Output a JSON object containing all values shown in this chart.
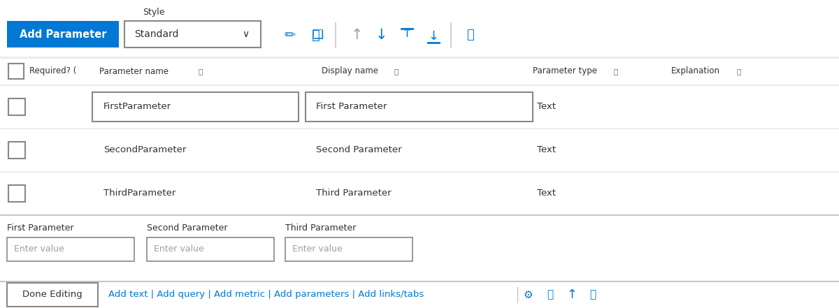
{
  "bg_color": "#f3f2f1",
  "white": "#ffffff",
  "blue": "#0078d4",
  "dark_gray": "#323130",
  "mid_gray": "#605e5c",
  "light_gray_row": "#f3f2f1",
  "border_gray": "#8a8886",
  "divider_color": "#c8c6c4",
  "placeholder_color": "#a19f9d",
  "add_param_label": "Add Parameter",
  "style_label": "Style",
  "style_value": "Standard",
  "col_required": "Required? (",
  "col_param_name": "Parameter name",
  "col_display_name": "Display name",
  "col_param_type": "Parameter type",
  "col_explanation": "Explanation",
  "rows": [
    {
      "param_name": "FirstParameter",
      "display_name": "First Parameter",
      "type": "Text",
      "selected": true
    },
    {
      "param_name": "SecondParameter",
      "display_name": "Second Parameter",
      "type": "Text",
      "selected": false
    },
    {
      "param_name": "ThirdParameter",
      "display_name": "Third Parameter",
      "type": "Text",
      "selected": false
    }
  ],
  "input_labels": [
    "First Parameter",
    "Second Parameter",
    "Third Parameter"
  ],
  "input_placeholder": "Enter value",
  "done_btn_label": "Done Editing",
  "bottom_links": "Add text | Add query | Add metric | Add parameters | Add links/tabs"
}
